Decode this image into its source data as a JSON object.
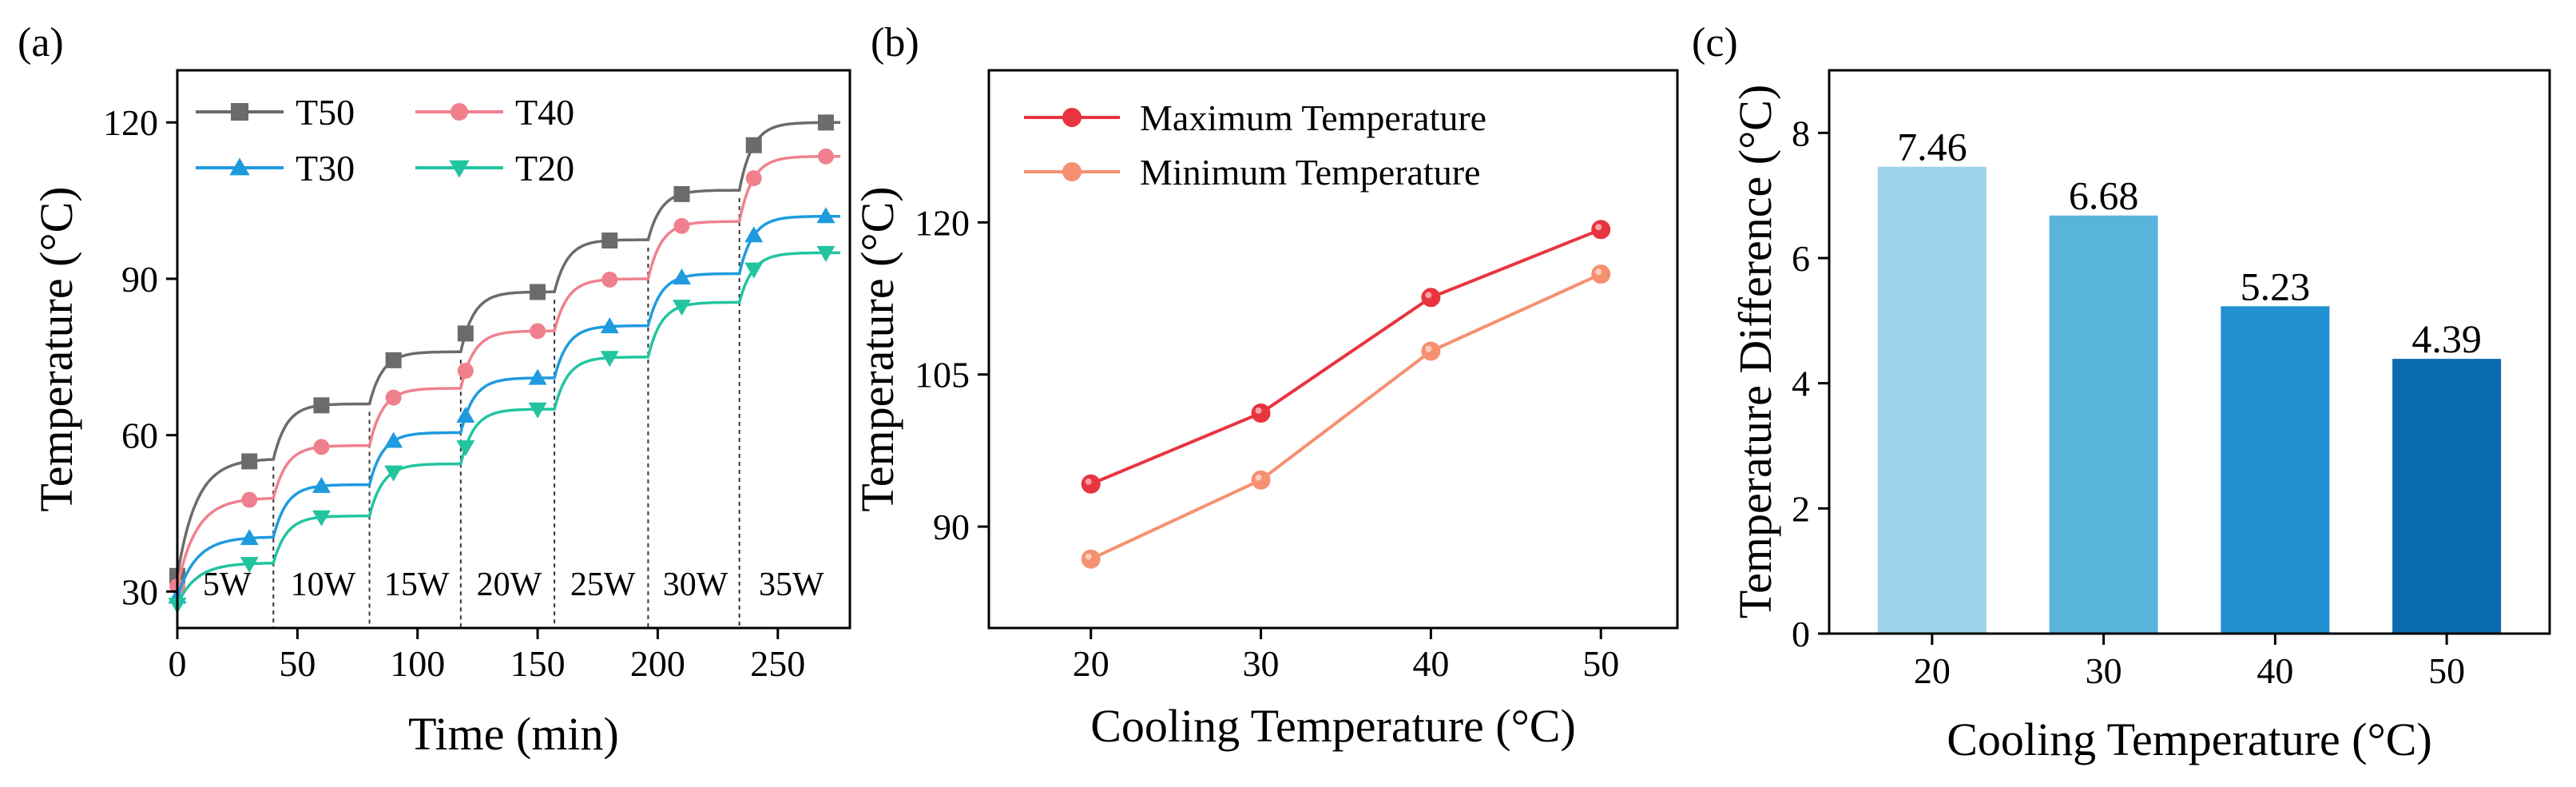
{
  "chart_data": [
    {
      "type": "line",
      "panel_label": "(a)",
      "xlabel": "Time (min)",
      "ylabel": "Temperature (°C)",
      "xlim": [
        0,
        280
      ],
      "ylim": [
        23,
        130
      ],
      "xticks": [
        0,
        50,
        100,
        150,
        200,
        250
      ],
      "yticks": [
        30,
        60,
        90,
        120
      ],
      "step_boundaries": [
        40,
        80,
        118,
        157,
        196,
        234
      ],
      "power_labels": [
        "5W",
        "10W",
        "15W",
        "20W",
        "25W",
        "30W",
        "35W"
      ],
      "series": [
        {
          "name": "T50",
          "color": "#6b6b6b",
          "marker": "square",
          "start": 33,
          "plateaus": [
            55.5,
            66,
            76,
            87.5,
            97.5,
            107,
            120
          ]
        },
        {
          "name": "T40",
          "color": "#f0808e",
          "marker": "circle",
          "start": 31,
          "plateaus": [
            48,
            58,
            69,
            80,
            90,
            101,
            113.5
          ]
        },
        {
          "name": "T30",
          "color": "#1e9bde",
          "marker": "triangle-up",
          "start": 29,
          "plateaus": [
            40.5,
            50.5,
            60.5,
            71,
            81,
            91,
            102
          ]
        },
        {
          "name": "T20",
          "color": "#22c4a0",
          "marker": "triangle-down",
          "start": 27.5,
          "plateaus": [
            35.5,
            44.5,
            54.5,
            65,
            75,
            85.5,
            95
          ]
        }
      ]
    },
    {
      "type": "line",
      "panel_label": "(b)",
      "xlabel": "Cooling Temperature (°C)",
      "ylabel": "Temperature (°C)",
      "xlim": [
        14,
        54.5
      ],
      "ylim": [
        80,
        135
      ],
      "xticks": [
        20,
        30,
        40,
        50
      ],
      "yticks": [
        90,
        105,
        120
      ],
      "x": [
        20,
        30,
        40,
        50
      ],
      "series": [
        {
          "name": "Maximum Temperature",
          "color": "#e8343f",
          "marker_color": "#e8343f",
          "values": [
            94.2,
            101.2,
            112.6,
            119.3
          ]
        },
        {
          "name": "Minimum Temperature",
          "color": "#f59070",
          "marker_color": "#f59070",
          "values": [
            86.8,
            94.6,
            107.3,
            114.9
          ]
        }
      ]
    },
    {
      "type": "bar",
      "panel_label": "(c)",
      "xlabel": "Cooling Temperature (°C)",
      "ylabel": "Temperature Difference (°C)",
      "ylim": [
        0,
        9
      ],
      "yticks": [
        0,
        2,
        4,
        6,
        8
      ],
      "categories": [
        "20",
        "30",
        "40",
        "50"
      ],
      "values": [
        7.46,
        6.68,
        5.23,
        4.39
      ],
      "value_labels": [
        "7.46",
        "6.68",
        "5.23",
        "4.39"
      ],
      "colors": [
        "#9fd4ea",
        "#59b4dc",
        "#2190d0",
        "#0b6bb0"
      ]
    }
  ]
}
